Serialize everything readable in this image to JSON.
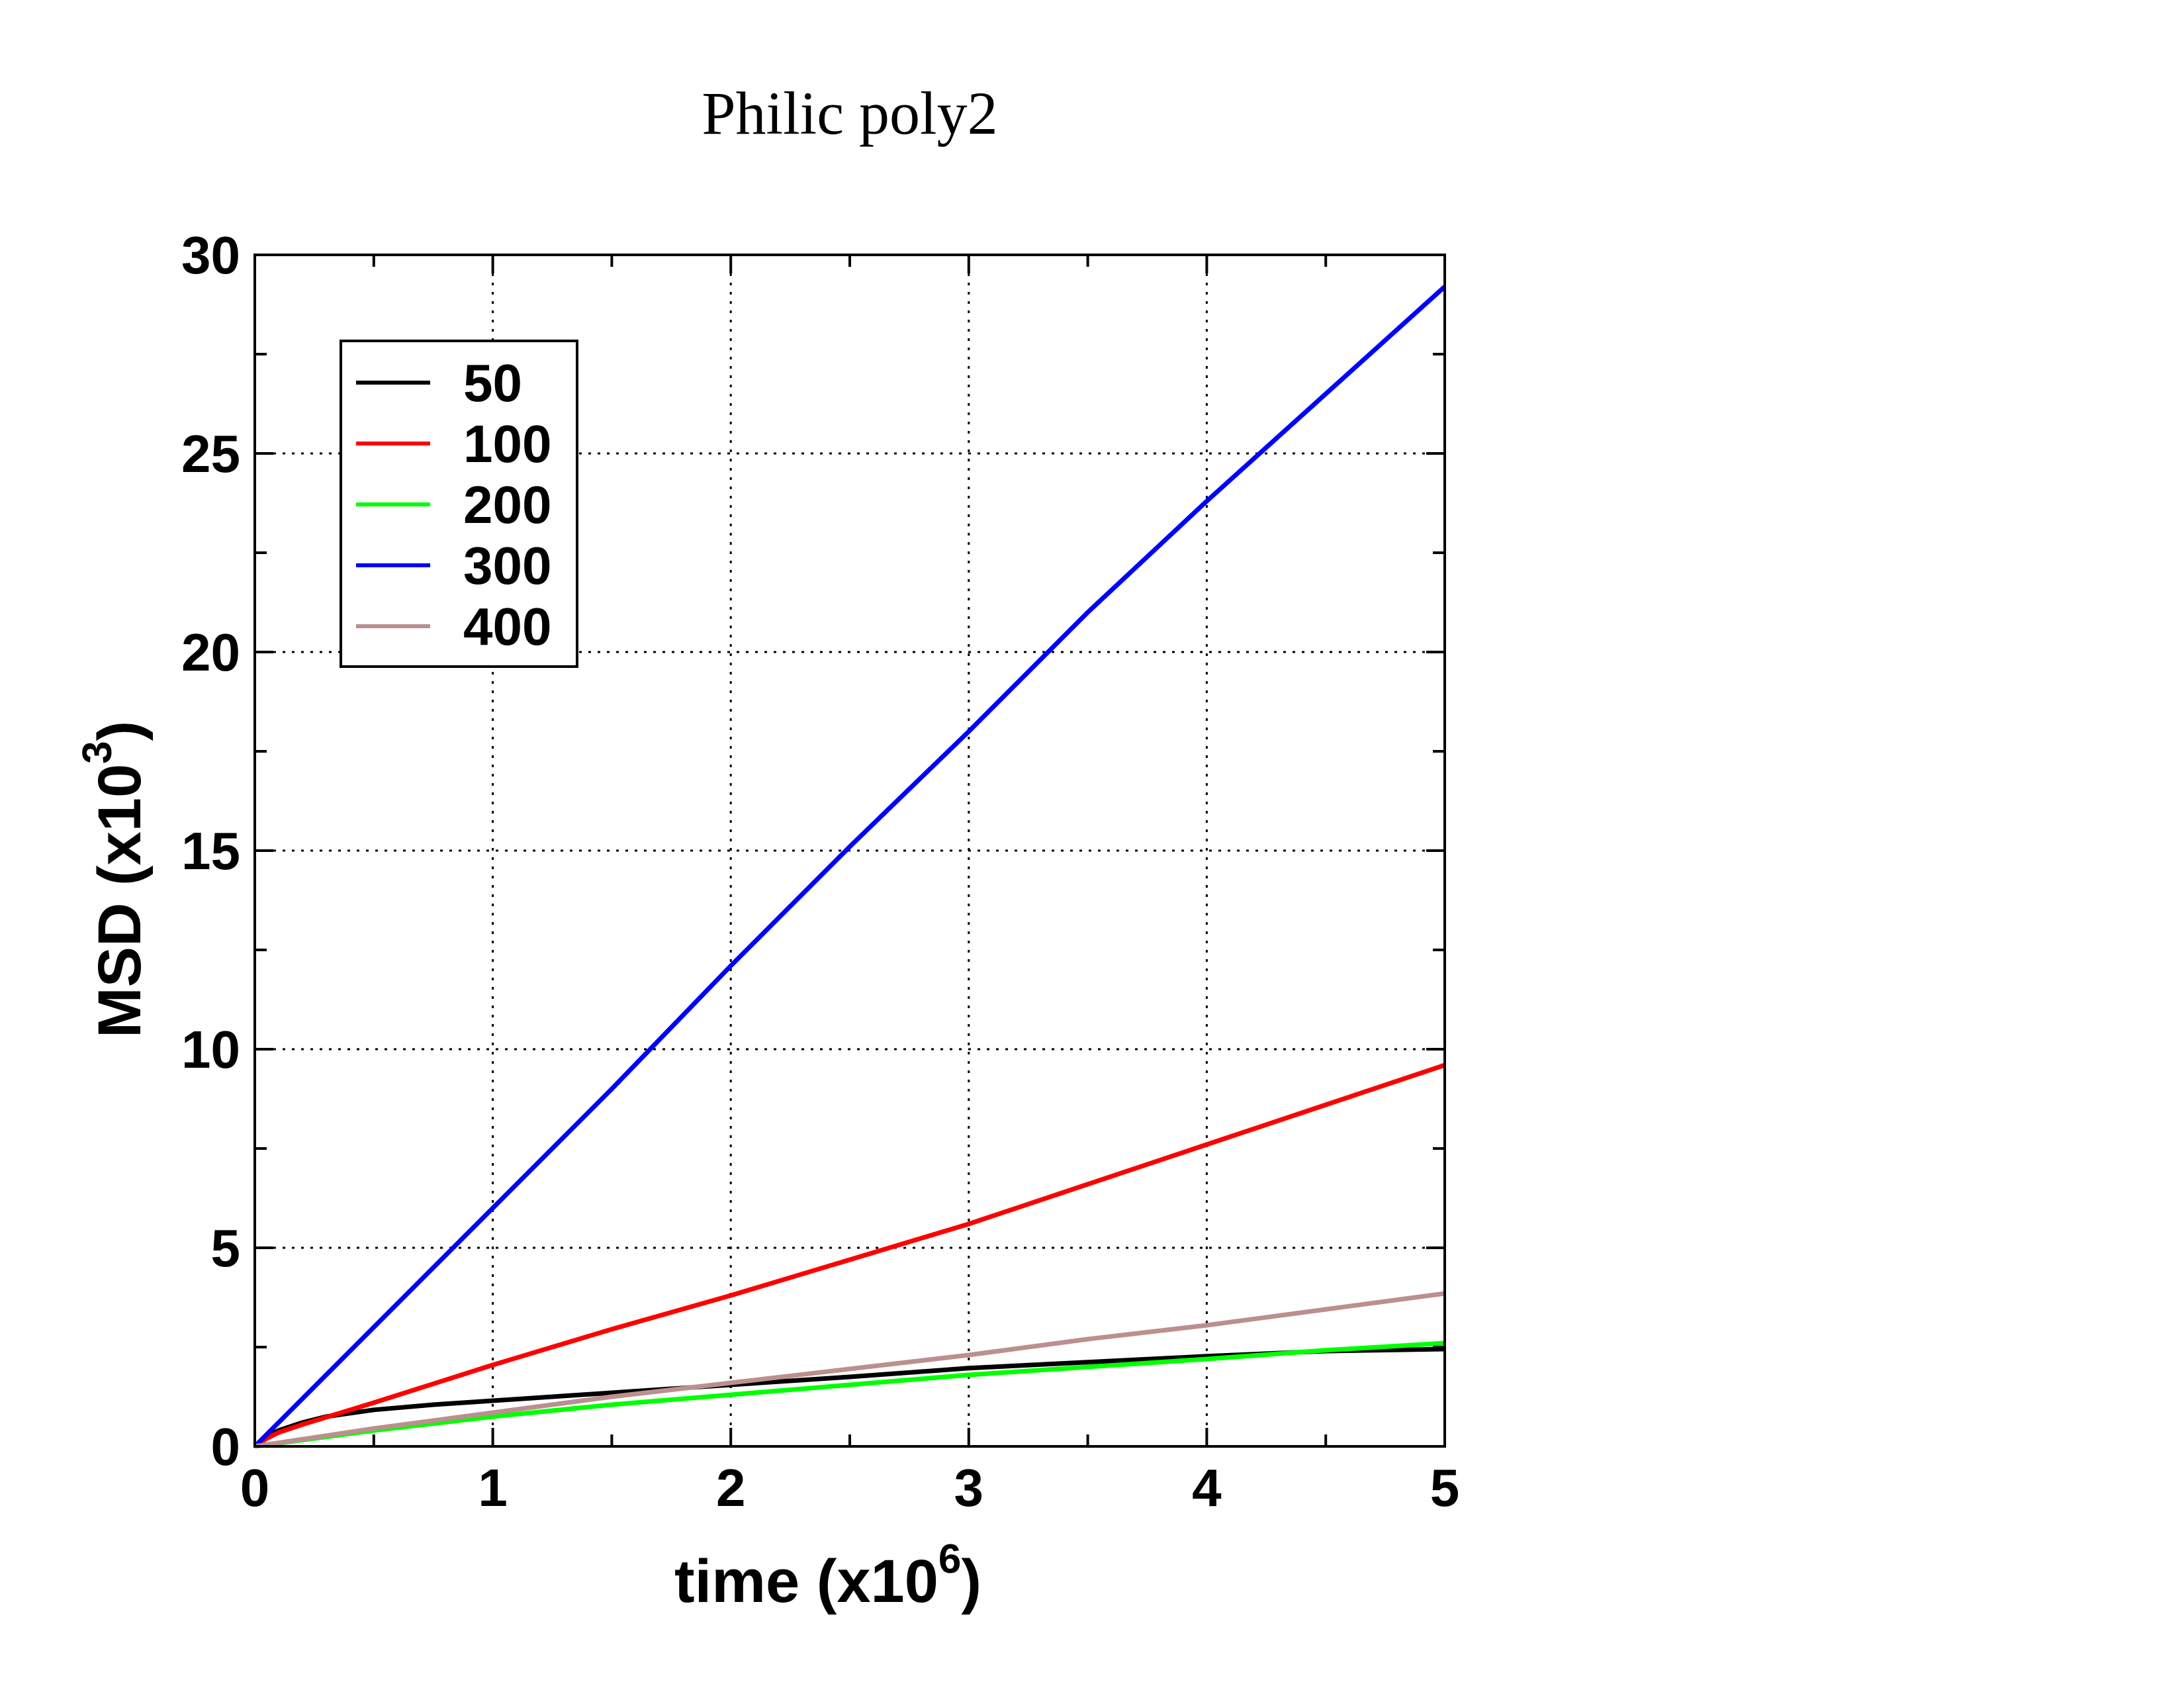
{
  "chart_data": {
    "type": "line",
    "title": "Philic poly2",
    "xlabel": "time (x10",
    "xlabel_exp": "6",
    "xlabel_close": ")",
    "ylabel": "MSD (x10",
    "ylabel_exp": "3",
    "ylabel_close": ")",
    "xlim": [
      0,
      5
    ],
    "ylim": [
      0,
      30
    ],
    "x_ticks": [
      "0",
      "1",
      "2",
      "3",
      "4",
      "5"
    ],
    "y_ticks": [
      "0",
      "5",
      "10",
      "15",
      "20",
      "25",
      "30"
    ],
    "grid": true,
    "legend_position": "top-left",
    "series": [
      {
        "name": "50",
        "color": "#000000",
        "x": [
          0,
          0.05,
          0.1,
          0.2,
          0.3,
          0.5,
          0.75,
          1.0,
          1.5,
          2.0,
          2.5,
          3.0,
          3.5,
          4.0,
          4.5,
          5.0
        ],
        "y": [
          0,
          0.25,
          0.4,
          0.6,
          0.75,
          0.92,
          1.05,
          1.15,
          1.35,
          1.55,
          1.75,
          1.97,
          2.12,
          2.27,
          2.4,
          2.45
        ]
      },
      {
        "name": "100",
        "color": "#ff0000",
        "x": [
          0,
          0.05,
          0.1,
          0.2,
          0.5,
          1.0,
          1.5,
          2.0,
          2.5,
          3.0,
          3.5,
          4.0,
          4.5,
          5.0
        ],
        "y": [
          0,
          0.2,
          0.35,
          0.55,
          1.1,
          2.05,
          2.95,
          3.8,
          4.7,
          5.6,
          6.6,
          7.6,
          8.6,
          9.6
        ]
      },
      {
        "name": "200",
        "color": "#00ff00",
        "x": [
          0,
          0.5,
          1.0,
          1.5,
          2.0,
          2.5,
          3.0,
          3.5,
          4.0,
          4.5,
          5.0
        ],
        "y": [
          0,
          0.4,
          0.75,
          1.05,
          1.3,
          1.55,
          1.8,
          2.0,
          2.2,
          2.42,
          2.6
        ]
      },
      {
        "name": "300",
        "color": "#0000ff",
        "x": [
          0,
          0.5,
          1.0,
          1.5,
          2.0,
          2.5,
          3.0,
          3.5,
          4.0,
          4.5,
          5.0
        ],
        "y": [
          0,
          3.0,
          6.0,
          9.0,
          12.1,
          15.1,
          18.0,
          21.0,
          23.8,
          26.5,
          29.2
        ]
      },
      {
        "name": "400",
        "color": "#bc8f8f",
        "x": [
          0,
          0.5,
          1.0,
          1.5,
          2.0,
          2.5,
          3.0,
          3.5,
          4.0,
          4.5,
          5.0
        ],
        "y": [
          0,
          0.45,
          0.85,
          1.25,
          1.6,
          1.95,
          2.3,
          2.7,
          3.05,
          3.45,
          3.85
        ]
      }
    ]
  }
}
